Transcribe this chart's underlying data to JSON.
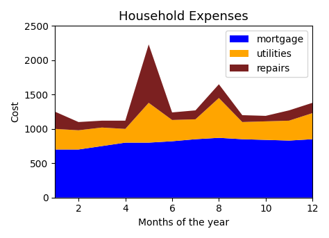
{
  "title": "Household Expenses",
  "xlabel": "Months of the year",
  "ylabel": "Cost",
  "months": [
    1,
    2,
    3,
    4,
    5,
    6,
    7,
    8,
    9,
    10,
    11,
    12
  ],
  "mortgage": [
    700,
    700,
    750,
    800,
    800,
    820,
    850,
    870,
    850,
    840,
    830,
    850
  ],
  "utilities": [
    300,
    280,
    270,
    200,
    580,
    310,
    290,
    580,
    250,
    270,
    290,
    380
  ],
  "repairs": [
    250,
    120,
    100,
    120,
    850,
    110,
    130,
    200,
    100,
    80,
    150,
    150
  ],
  "colors": [
    "blue",
    "orange",
    "#7B2020"
  ],
  "labels": [
    "mortgage",
    "utilities",
    "repairs"
  ],
  "xlim": [
    1,
    12
  ],
  "ylim": [
    0,
    2500
  ],
  "title_fontsize": 13,
  "figsize": [
    4.74,
    3.43
  ],
  "dpi": 100
}
